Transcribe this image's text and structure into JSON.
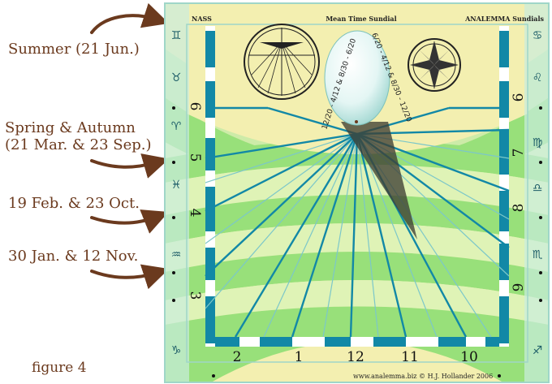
{
  "left_labels": {
    "summer": "Summer (21 Jun.)",
    "equinox_line1": "Spring & Autumn",
    "equinox_line2": "(21 Mar. & 23 Sep.)",
    "feb_oct": "19 Feb. & 23 Oct.",
    "jan_nov": "30 Jan. & 12 Nov.",
    "figure": "figure 4"
  },
  "dial": {
    "top_left": "NASS",
    "top_center": "Mean Time Sundial",
    "top_right": "ANALEMMA Sundials",
    "credit": "www.analemma.biz  ©  H.J. Hollander 2006",
    "analemma_left_text": "12/20 - 4/12 & 8/30 - 6/20",
    "analemma_right_text": "6/20 - 4/12 & 8/30 - 12/20",
    "hours_left": [
      "6",
      "5",
      "4",
      "3"
    ],
    "hours_right": [
      "6",
      "7",
      "8",
      "9"
    ],
    "hours_bottom": [
      "2",
      "1",
      "12",
      "11",
      "10"
    ],
    "zodiac_left": [
      "♊",
      "♉",
      "♈",
      "♓",
      "♒",
      "♑"
    ],
    "zodiac_right": [
      "♋",
      "♌",
      "♍",
      "♎",
      "♏",
      "♐"
    ]
  },
  "colors": {
    "brown": "#6b3a1e",
    "face_yellow": "#f3efb0",
    "band_green": "#98e07a",
    "band_light": "#dff3b6",
    "frame_teal": "#1288a6",
    "border_light": "#c9ecde",
    "shadow": "#4a4a3a"
  }
}
